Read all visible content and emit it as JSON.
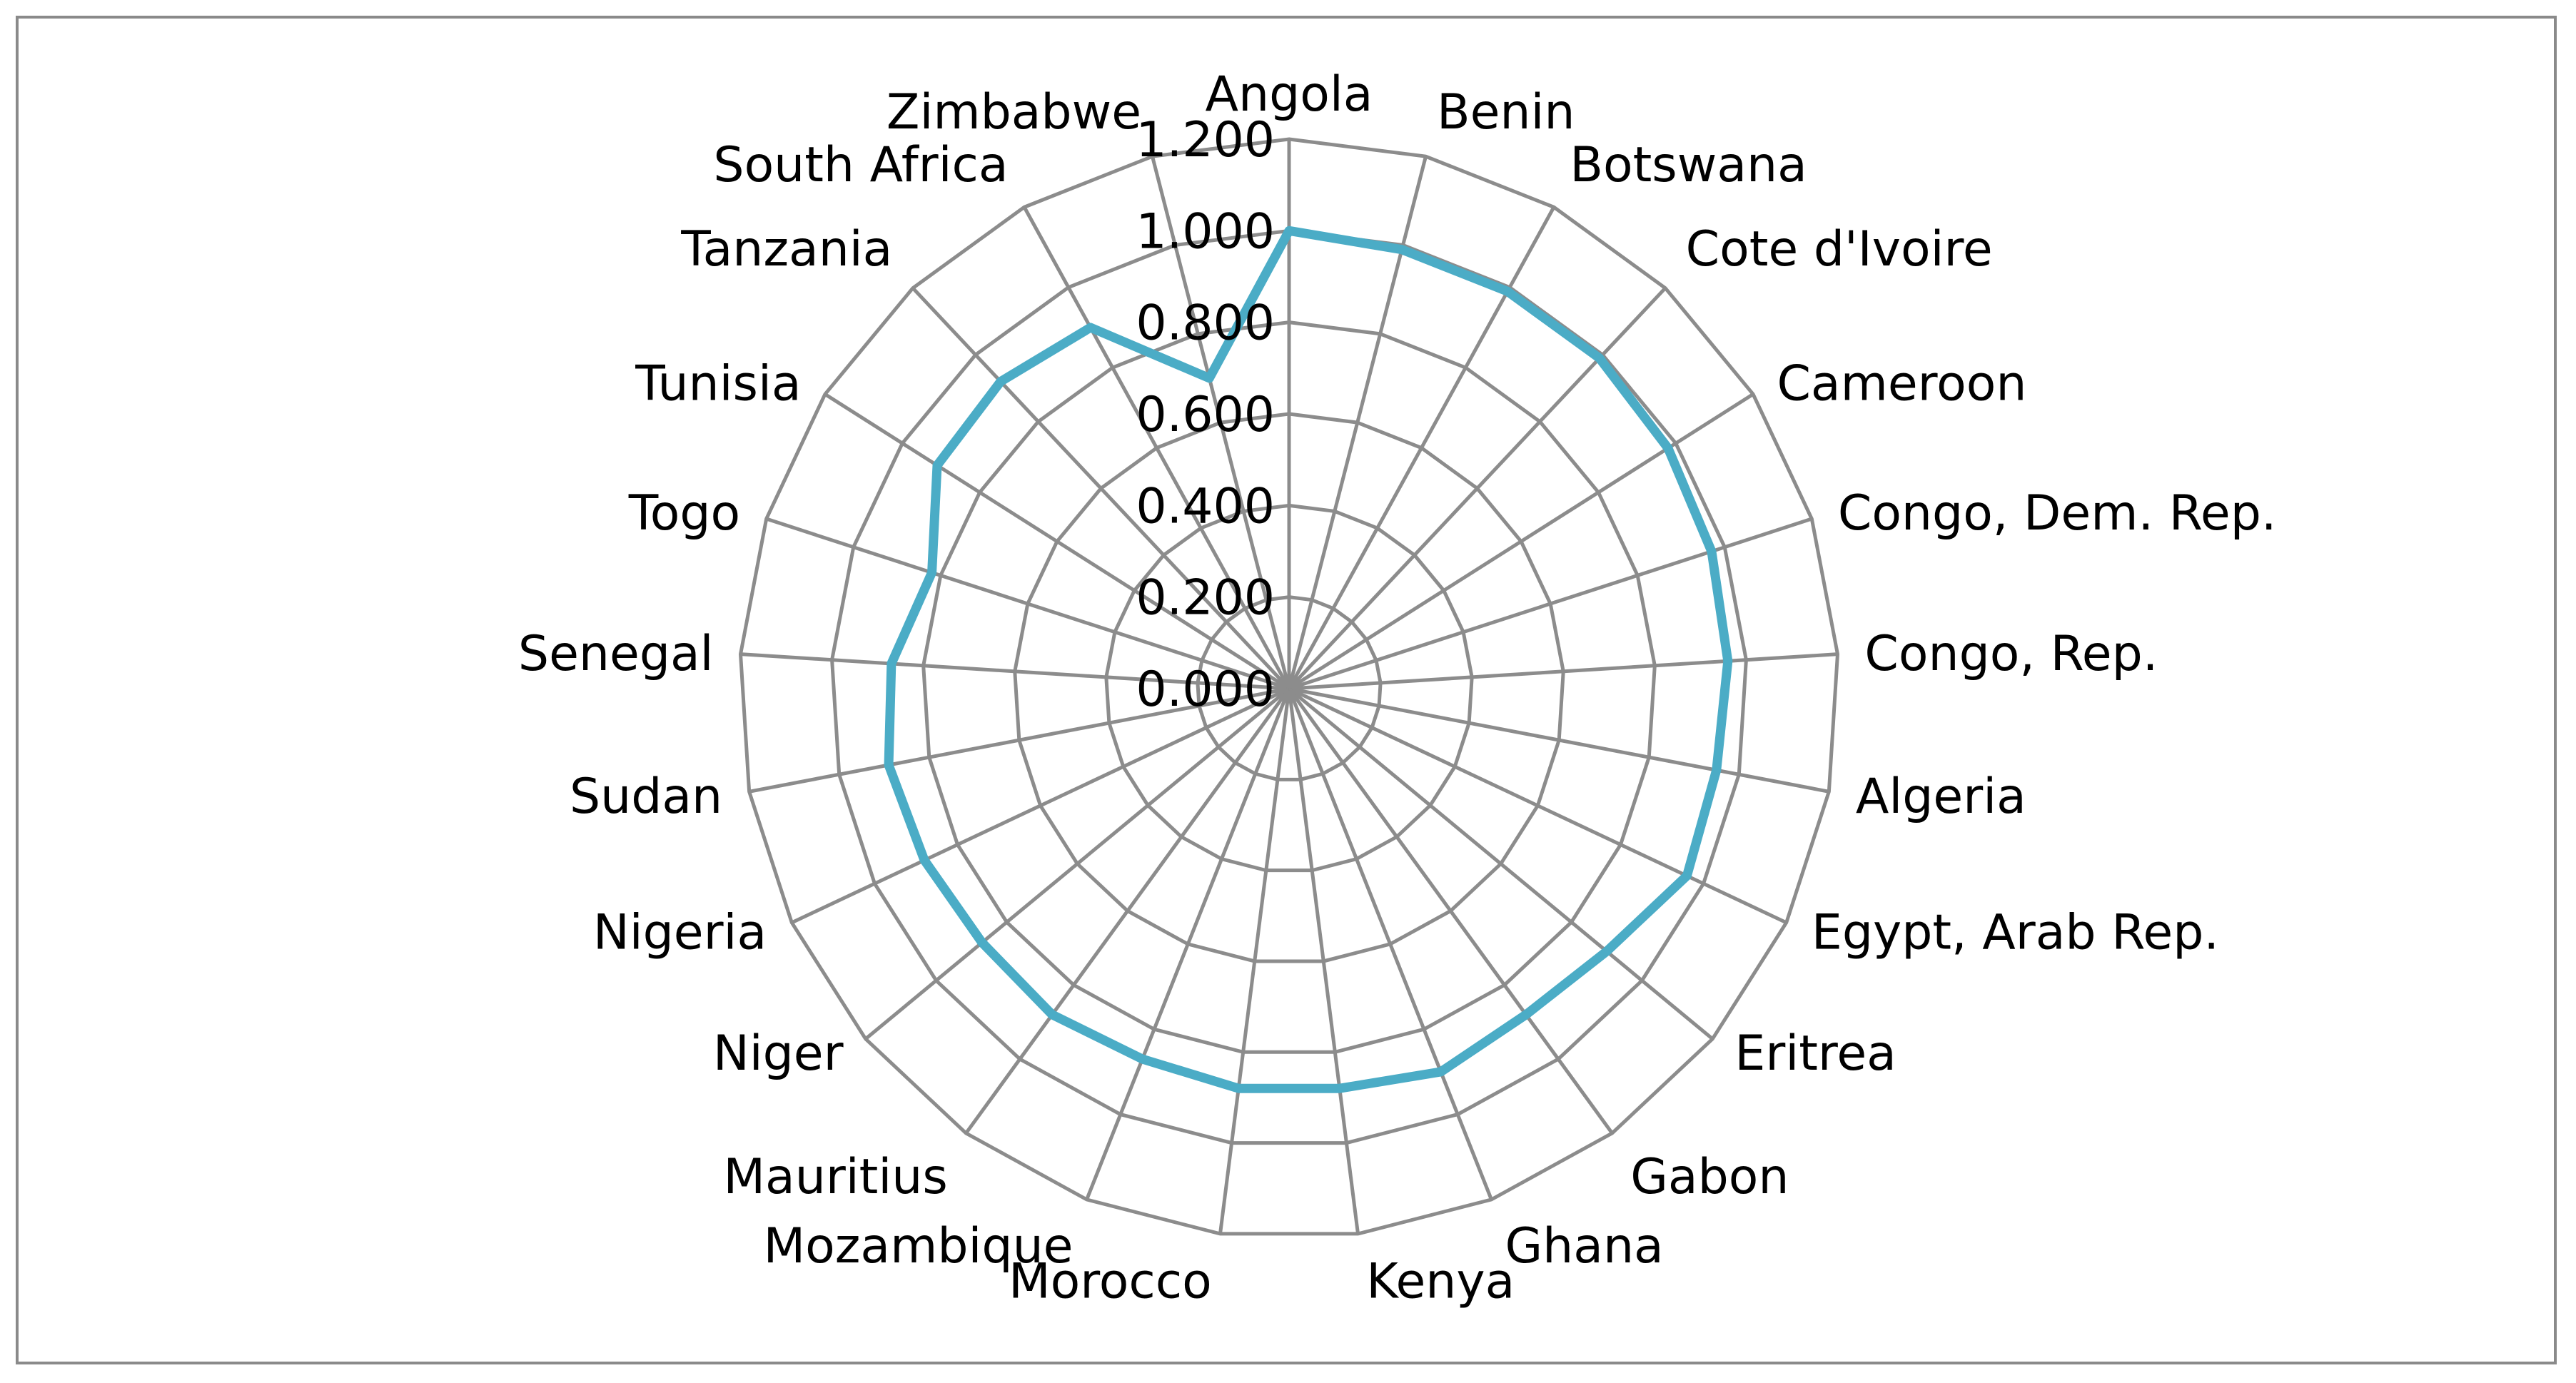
{
  "chart_data": {
    "type": "radar",
    "title": "",
    "categories": [
      "Angola",
      "Benin",
      "Botswana",
      "Cote d'Ivoire",
      "Cameroon",
      "Congo, Dem. Rep.",
      "Congo, Rep.",
      "Algeria",
      "Egypt, Arab Rep.",
      "Eritrea",
      "Gabon",
      "Ghana",
      "Kenya",
      "Morocco",
      "Mozambique",
      "Mauritius",
      "Niger",
      "Nigeria",
      "Sudan",
      "Senegal",
      "Togo",
      "Tunisia",
      "Tanzania",
      "South Africa",
      "Zimbabwe"
    ],
    "series": [
      {
        "values": [
          1.0,
          0.99,
          0.99,
          0.99,
          0.98,
          0.97,
          0.96,
          0.95,
          0.96,
          0.9,
          0.88,
          0.9,
          0.88,
          0.88,
          0.87,
          0.88,
          0.87,
          0.88,
          0.89,
          0.87,
          0.82,
          0.91,
          0.92,
          0.9,
          0.7
        ],
        "color": "#4bacc6"
      }
    ],
    "ticks": [
      "0.000",
      "0.200",
      "0.400",
      "0.600",
      "0.800",
      "1.000",
      "1.200"
    ],
    "rlim": [
      0,
      1.2
    ],
    "grid": true,
    "legend": "none"
  },
  "colors": {
    "grid": "#8c8c8c",
    "series": "#4bacc6",
    "frame": "#8a8a8a"
  }
}
